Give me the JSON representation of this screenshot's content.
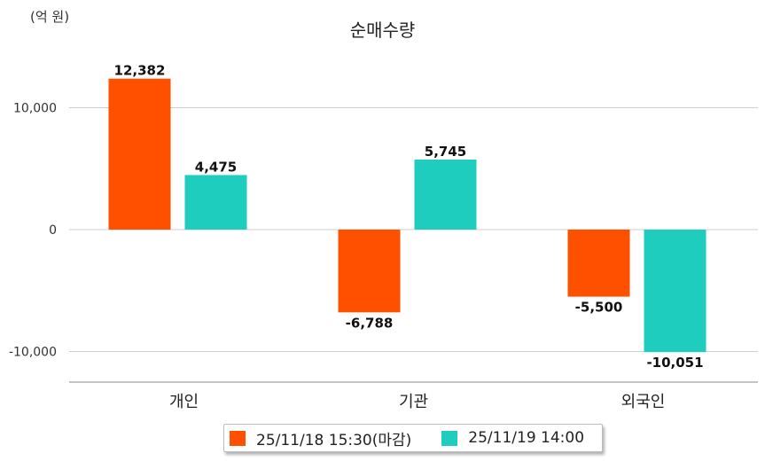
{
  "chart_data": {
    "type": "bar",
    "title": "순매수량",
    "unit_label": "(억 원)",
    "categories": [
      "개인",
      "기관",
      "외국인"
    ],
    "series": [
      {
        "name": "25/11/18 15:30(마감)",
        "color": "#ff5000",
        "values": [
          12382,
          -6788,
          -5500
        ],
        "labels": [
          "12,382",
          "-6,788",
          "-5,500"
        ]
      },
      {
        "name": "25/11/19 14:00",
        "color": "#1ecdbe",
        "values": [
          4475,
          5745,
          -10051
        ],
        "labels": [
          "4,475",
          "5,745",
          "-10,051"
        ]
      }
    ],
    "y_ticks": [
      10000,
      0,
      -10000
    ],
    "y_tick_labels": [
      "10,000",
      "0",
      "-10,000"
    ],
    "ylim": [
      -12500,
      15000
    ],
    "grid": true,
    "legend_position": "bottom-center"
  }
}
